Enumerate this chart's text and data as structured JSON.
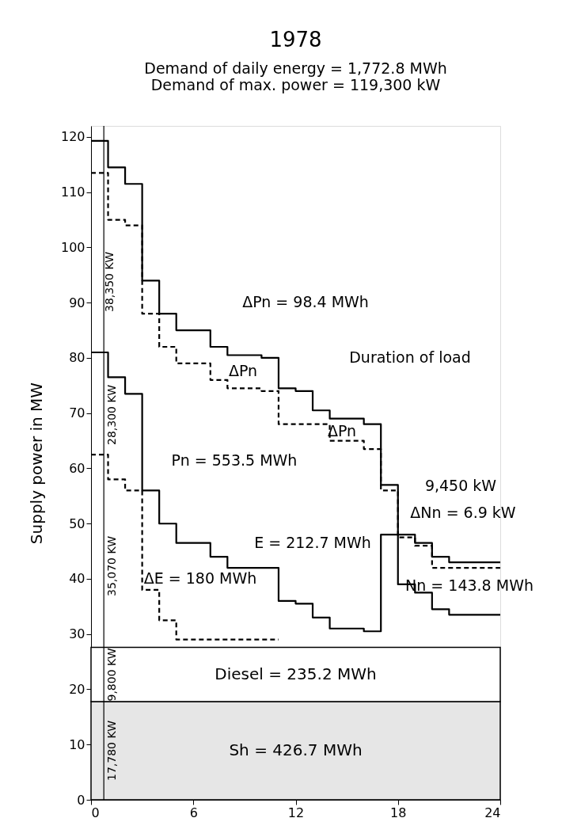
{
  "chart_data": {
    "type": "step",
    "title": "1978",
    "ylabel": "Supply power in MW",
    "xlim": [
      0,
      24
    ],
    "xticks": [
      0,
      6,
      12,
      18,
      24
    ],
    "ylim": [
      0,
      122
    ],
    "yticks": [
      0,
      10,
      20,
      30,
      40,
      50,
      60,
      70,
      80,
      90,
      100,
      110,
      120
    ],
    "grid": false,
    "marker": "none",
    "series": [
      {
        "color": "#000000",
        "line_style": "solid",
        "x": [
          0,
          1,
          2,
          3,
          4,
          5,
          7,
          8,
          10,
          11,
          12,
          13,
          14,
          16,
          17,
          18,
          19,
          20,
          21,
          24
        ],
        "values": [
          119.3,
          114.5,
          111.5,
          94,
          88,
          85,
          82,
          80.5,
          80,
          74.5,
          74,
          70.5,
          69,
          68,
          57,
          48,
          46.5,
          44,
          43,
          43
        ]
      },
      {
        "color": "#000000",
        "line_style": "dashed",
        "x": [
          0,
          1,
          2,
          3,
          4,
          5,
          7,
          8,
          10,
          11,
          14,
          16,
          17,
          18,
          19,
          20,
          24
        ],
        "values": [
          113.5,
          105,
          104,
          88,
          82,
          79,
          76,
          74.5,
          74,
          68,
          65,
          63.5,
          56,
          47.5,
          46,
          42,
          42
        ]
      },
      {
        "color": "#000000",
        "line_style": "solid",
        "x": [
          0,
          1,
          2,
          3,
          4,
          5,
          7,
          8,
          11,
          12,
          13,
          14,
          16,
          17,
          18,
          19,
          20,
          21,
          24
        ],
        "values": [
          81,
          76.5,
          73.5,
          56,
          50,
          46.5,
          44,
          42,
          36,
          35.5,
          33,
          31,
          30.5,
          48,
          39,
          37.5,
          34.5,
          33.5,
          33.5
        ]
      },
      {
        "color": "#000000",
        "line_style": "dashed",
        "x": [
          0,
          1,
          2,
          3,
          4,
          5,
          11
        ],
        "values": [
          62.5,
          58,
          56,
          38,
          32.5,
          29,
          29
        ]
      }
    ],
    "bands": [
      {
        "axis": "y",
        "from": 0,
        "to": 17.78,
        "label": "Sh = 426.7 MWh",
        "color": "#e6e6e6"
      },
      {
        "axis": "y",
        "from": 17.78,
        "to": 27.58,
        "label": "Diesel = 235.2 MWh",
        "color": "#ffffff"
      }
    ],
    "ref_lines": [
      {
        "axis": "x",
        "value": 0.75,
        "label": null
      }
    ],
    "annotations": [
      "Demand of daily energy = 1,772.8 MWh",
      "Demand of max. power = 119,300 kW",
      "ΔPn = 98.4 MWh",
      "ΔPn",
      "Duration of load",
      "ΔPn",
      "Pn = 553.5 MWh",
      "ΔE = 180 MWh",
      "E = 212.7 MWh",
      "9,450 kW",
      "ΔNn = 6.9 kW",
      "Nn = 143.8 MWh",
      "38,350 KW",
      "28,300 KW",
      "35,070 KW",
      "9,800 KW",
      "17,780 KW"
    ]
  }
}
